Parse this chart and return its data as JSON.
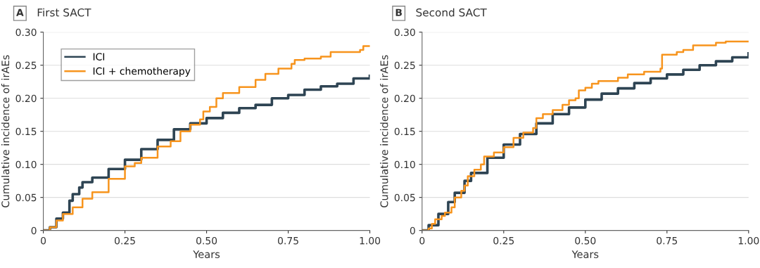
{
  "chart_data": [
    {
      "type": "step",
      "title": "First SACT",
      "annotations": [
        "A"
      ],
      "xlabel": "Years",
      "ylabel": "Cumulative incidence of irAEs",
      "xlim": [
        0,
        1
      ],
      "ylim": [
        0,
        0.3
      ],
      "xticks": [
        {
          "value": 0,
          "label": "0"
        },
        {
          "value": 0.25,
          "label": "0.25"
        },
        {
          "value": 0.5,
          "label": "0.50"
        },
        {
          "value": 0.75,
          "label": "0.75"
        },
        {
          "value": 1,
          "label": "1.00"
        }
      ],
      "yticks": [
        {
          "value": 0,
          "label": "0"
        },
        {
          "value": 0.05,
          "label": "0.05"
        },
        {
          "value": 0.1,
          "label": "0.10"
        },
        {
          "value": 0.15,
          "label": "0.15"
        },
        {
          "value": 0.2,
          "label": "0.20"
        },
        {
          "value": 0.25,
          "label": "0.25"
        },
        {
          "value": 0.3,
          "label": "0.30"
        }
      ],
      "grid": "y",
      "legend": "top left",
      "series": [
        {
          "name": "ICI",
          "color": "#2e4453",
          "x": [
            0,
            0.02,
            0.04,
            0.06,
            0.08,
            0.09,
            0.11,
            0.12,
            0.15,
            0.2,
            0.25,
            0.3,
            0.35,
            0.4,
            0.45,
            0.5,
            0.55,
            0.6,
            0.65,
            0.7,
            0.75,
            0.8,
            0.85,
            0.9,
            0.95,
            1.0
          ],
          "values": [
            0,
            0.005,
            0.018,
            0.027,
            0.045,
            0.055,
            0.065,
            0.073,
            0.08,
            0.093,
            0.107,
            0.123,
            0.137,
            0.153,
            0.162,
            0.17,
            0.178,
            0.185,
            0.19,
            0.2,
            0.205,
            0.213,
            0.218,
            0.222,
            0.23,
            0.234
          ]
        },
        {
          "name": "ICI + chemotherapy",
          "color": "#f7941d",
          "x": [
            0,
            0.02,
            0.04,
            0.06,
            0.09,
            0.12,
            0.15,
            0.2,
            0.25,
            0.28,
            0.3,
            0.35,
            0.39,
            0.42,
            0.45,
            0.48,
            0.49,
            0.51,
            0.53,
            0.55,
            0.6,
            0.65,
            0.68,
            0.72,
            0.76,
            0.77,
            0.8,
            0.85,
            0.88,
            0.97,
            0.98,
            1.0
          ],
          "values": [
            0,
            0.005,
            0.015,
            0.025,
            0.035,
            0.048,
            0.058,
            0.078,
            0.097,
            0.102,
            0.11,
            0.127,
            0.135,
            0.15,
            0.16,
            0.168,
            0.18,
            0.187,
            0.2,
            0.208,
            0.217,
            0.228,
            0.237,
            0.245,
            0.252,
            0.258,
            0.26,
            0.263,
            0.27,
            0.273,
            0.279,
            0.279
          ]
        }
      ]
    },
    {
      "type": "step",
      "title": "Second SACT",
      "annotations": [
        "B"
      ],
      "xlabel": "Years",
      "ylabel": "Cumulative incidence of irAEs",
      "xlim": [
        0,
        1
      ],
      "ylim": [
        0,
        0.3
      ],
      "xticks": [
        {
          "value": 0,
          "label": "0"
        },
        {
          "value": 0.25,
          "label": "0.25"
        },
        {
          "value": 0.5,
          "label": "0.50"
        },
        {
          "value": 0.75,
          "label": "0.75"
        },
        {
          "value": 1,
          "label": "1.00"
        }
      ],
      "yticks": [
        {
          "value": 0,
          "label": "0"
        },
        {
          "value": 0.05,
          "label": "0.05"
        },
        {
          "value": 0.1,
          "label": "0.10"
        },
        {
          "value": 0.15,
          "label": "0.15"
        },
        {
          "value": 0.2,
          "label": "0.20"
        },
        {
          "value": 0.25,
          "label": "0.25"
        },
        {
          "value": 0.3,
          "label": "0.30"
        }
      ],
      "grid": "y",
      "series": [
        {
          "color": "#2e4453",
          "x": [
            0,
            0.02,
            0.05,
            0.08,
            0.1,
            0.13,
            0.15,
            0.2,
            0.25,
            0.3,
            0.35,
            0.4,
            0.45,
            0.5,
            0.55,
            0.6,
            0.65,
            0.7,
            0.75,
            0.8,
            0.85,
            0.9,
            0.95,
            1.0
          ],
          "values": [
            0,
            0.008,
            0.025,
            0.043,
            0.057,
            0.075,
            0.087,
            0.11,
            0.13,
            0.146,
            0.162,
            0.176,
            0.186,
            0.198,
            0.207,
            0.215,
            0.223,
            0.23,
            0.236,
            0.243,
            0.25,
            0.256,
            0.262,
            0.268
          ]
        },
        {
          "color": "#f7941d",
          "x": [
            0,
            0.02,
            0.03,
            0.04,
            0.06,
            0.07,
            0.09,
            0.1,
            0.12,
            0.13,
            0.14,
            0.16,
            0.18,
            0.19,
            0.22,
            0.25,
            0.28,
            0.31,
            0.34,
            0.35,
            0.37,
            0.4,
            0.43,
            0.45,
            0.47,
            0.48,
            0.5,
            0.52,
            0.54,
            0.6,
            0.63,
            0.68,
            0.73,
            0.735,
            0.78,
            0.8,
            0.83,
            0.9,
            0.93,
            1.0
          ],
          "values": [
            0,
            0.003,
            0.01,
            0.017,
            0.022,
            0.027,
            0.035,
            0.05,
            0.06,
            0.068,
            0.082,
            0.092,
            0.1,
            0.112,
            0.118,
            0.126,
            0.14,
            0.148,
            0.155,
            0.17,
            0.176,
            0.182,
            0.19,
            0.197,
            0.2,
            0.212,
            0.216,
            0.222,
            0.226,
            0.231,
            0.236,
            0.24,
            0.245,
            0.266,
            0.27,
            0.273,
            0.28,
            0.284,
            0.286,
            0.286
          ]
        }
      ]
    }
  ]
}
